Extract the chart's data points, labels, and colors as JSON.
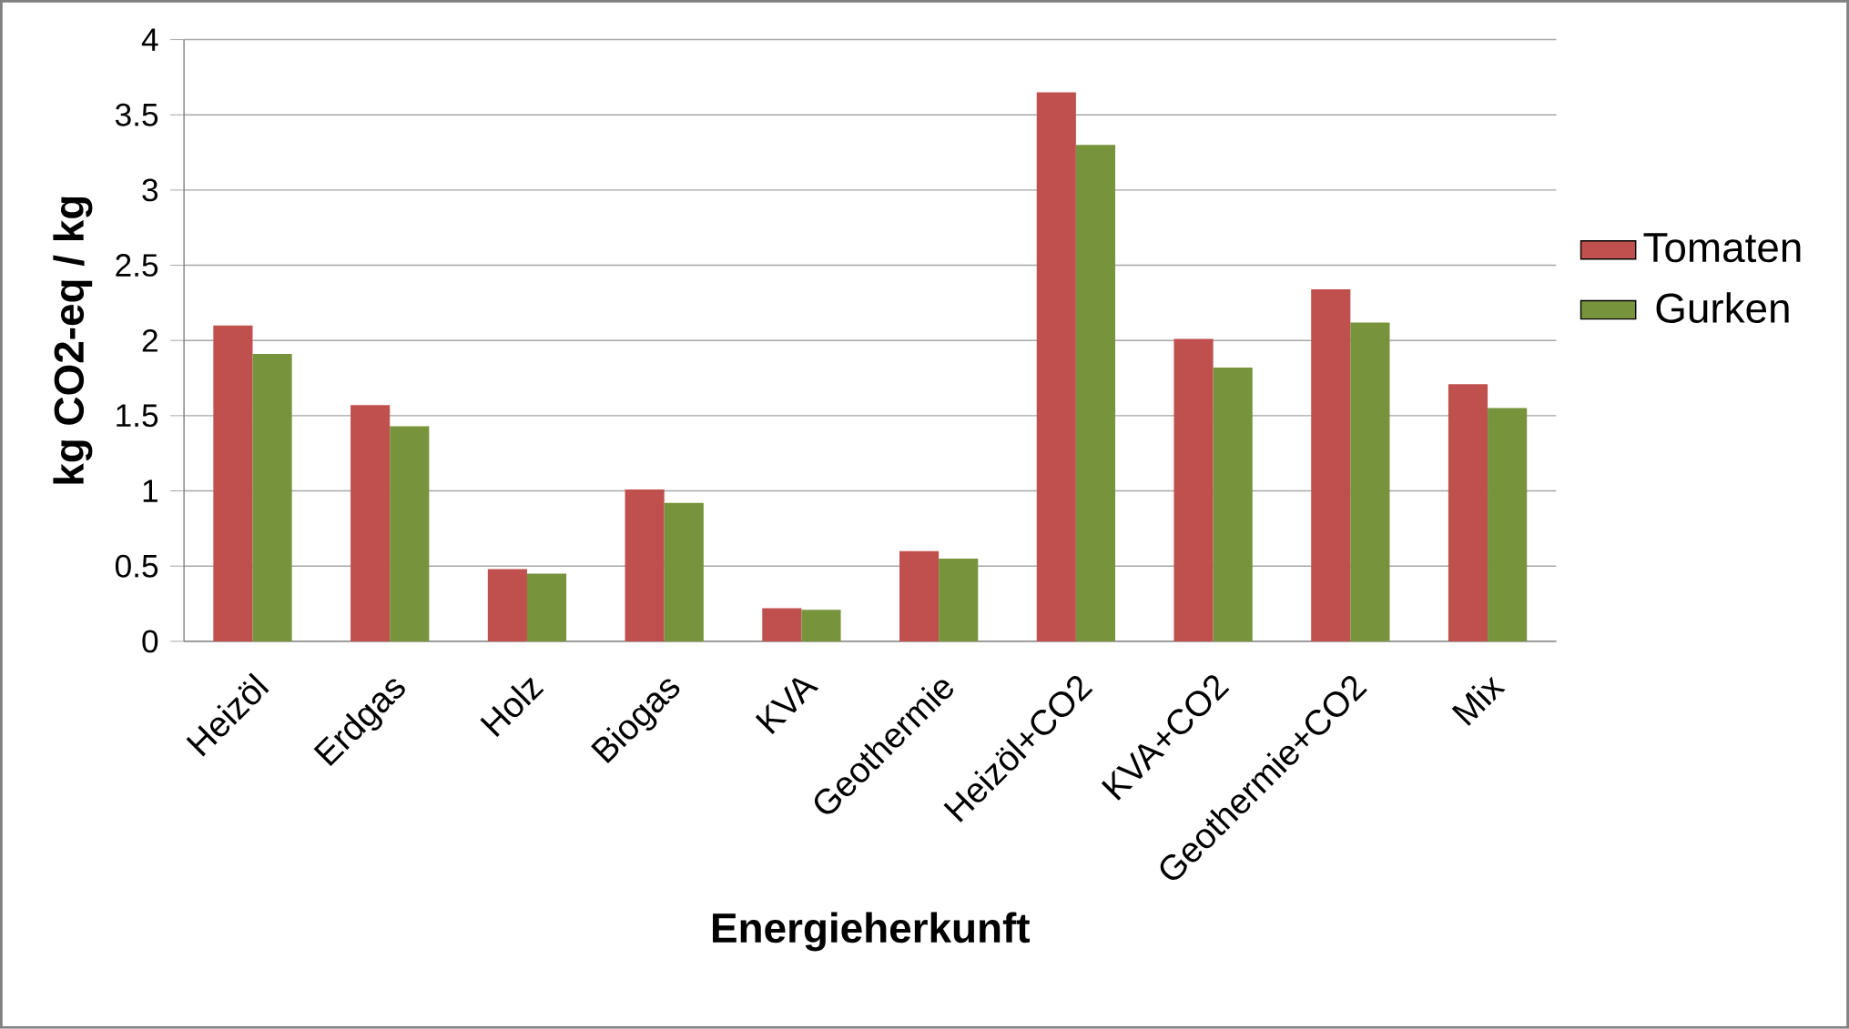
{
  "chart_data": {
    "type": "bar",
    "xlabel": "Energieherkunft",
    "ylabel": "kg CO2-eq / kg",
    "categories": [
      "Heizöl",
      "Erdgas",
      "Holz",
      "Biogas",
      "KVA",
      "Geothermie",
      "Heizöl+CO2",
      "KVA+CO2",
      "Geothermie+CO2",
      "Mix"
    ],
    "series": [
      {
        "name": "Tomaten",
        "color": "#c0504d",
        "values": [
          2.1,
          1.57,
          0.48,
          1.01,
          0.22,
          0.6,
          3.65,
          2.01,
          2.34,
          1.71
        ]
      },
      {
        "name": "Gurken",
        "color": "#77933c",
        "values": [
          1.91,
          1.43,
          0.45,
          0.92,
          0.21,
          0.55,
          3.3,
          1.82,
          2.12,
          1.55
        ]
      }
    ],
    "ylim": [
      0,
      4
    ],
    "yticks": [
      0,
      0.5,
      1,
      1.5,
      2,
      2.5,
      3,
      3.5,
      4
    ],
    "grid": "y",
    "legend": "right"
  }
}
